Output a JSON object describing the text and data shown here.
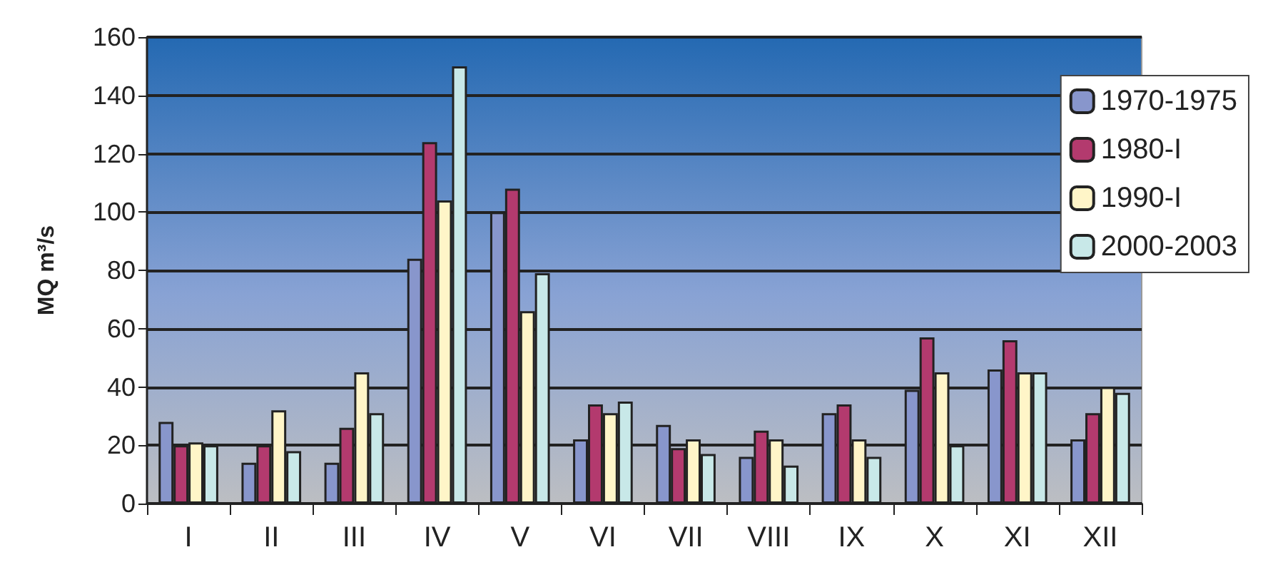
{
  "chart_data": {
    "type": "bar",
    "ylabel": "MQ m³/s",
    "categories": [
      "I",
      "II",
      "III",
      "IV",
      "V",
      "VI",
      "VII",
      "VIII",
      "IX",
      "X",
      "XI",
      "XII"
    ],
    "series": [
      {
        "name": "1970-1975",
        "color": "#8896cc",
        "values": [
          28,
          14,
          14,
          84,
          100,
          22,
          27,
          16,
          31,
          39,
          46,
          22
        ]
      },
      {
        "name": "1980-I",
        "color": "#b33a6e",
        "values": [
          20,
          20,
          26,
          124,
          108,
          34,
          19,
          25,
          34,
          57,
          56,
          31
        ]
      },
      {
        "name": "1990-I",
        "color": "#fff5c8",
        "values": [
          21,
          32,
          45,
          104,
          66,
          31,
          22,
          22,
          22,
          45,
          45,
          40
        ]
      },
      {
        "name": "2000-2003",
        "color": "#c8e8e8",
        "values": [
          20,
          18,
          31,
          150,
          79,
          35,
          17,
          13,
          16,
          20,
          45,
          38
        ]
      }
    ],
    "ylim": [
      0,
      160
    ],
    "yticks": [
      0,
      20,
      40,
      60,
      80,
      100,
      120,
      140,
      160
    ],
    "grid": "y",
    "legend": "right"
  }
}
